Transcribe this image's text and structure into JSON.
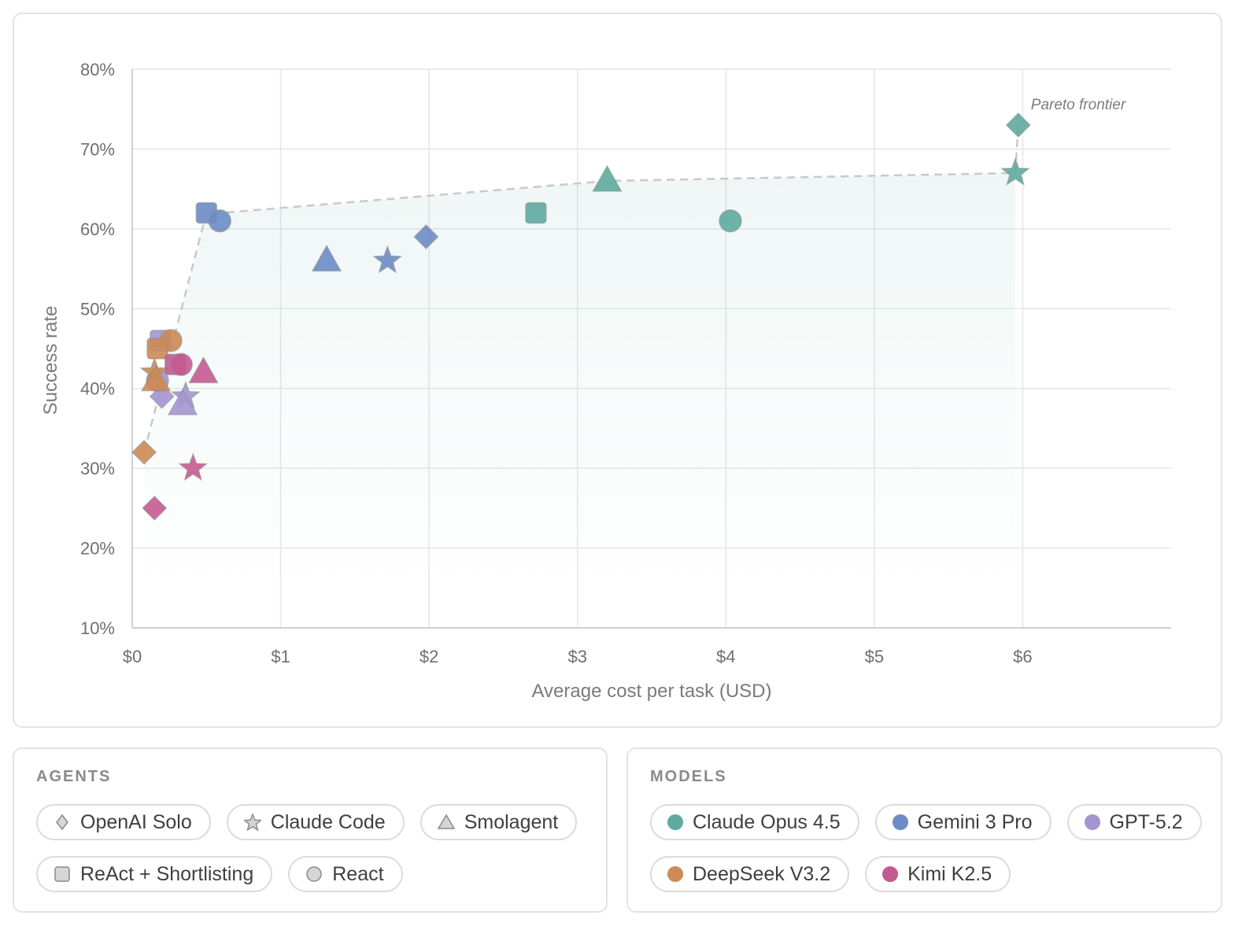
{
  "chart_data": {
    "type": "scatter",
    "xlabel": "Average cost per task (USD)",
    "ylabel": "Success rate",
    "xlim": [
      0,
      7
    ],
    "ylim": [
      10,
      80
    ],
    "x_ticks": [
      0,
      1,
      2,
      3,
      4,
      5,
      6
    ],
    "x_tick_labels": [
      "$0",
      "$1",
      "$2",
      "$3",
      "$4",
      "$5",
      "$6"
    ],
    "y_ticks": [
      10,
      20,
      30,
      40,
      50,
      60,
      70,
      80
    ],
    "y_tick_labels": [
      "10%",
      "20%",
      "30%",
      "40%",
      "50%",
      "60%",
      "70%",
      "80%"
    ],
    "grid": true,
    "frontier_label": "Pareto frontier",
    "frontier": [
      [
        0.08,
        32
      ],
      [
        0.5,
        62
      ],
      [
        0.6,
        62
      ],
      [
        3.2,
        66
      ],
      [
        5.95,
        67
      ],
      [
        5.97,
        73
      ]
    ],
    "model_colors": {
      "Claude Opus 4.5": "#5eaaa0",
      "Gemini 3 Pro": "#6b8cc4",
      "GPT-5.2": "#a495d0",
      "DeepSeek V3.2": "#cc8a55",
      "Kimi K2.5": "#c45a92"
    },
    "points": [
      {
        "agent": "OpenAI Solo",
        "model": "Claude Opus 4.5",
        "x": 5.97,
        "y": 73
      },
      {
        "agent": "Claude Code",
        "model": "Claude Opus 4.5",
        "x": 5.95,
        "y": 67
      },
      {
        "agent": "Smolagent",
        "model": "Claude Opus 4.5",
        "x": 3.2,
        "y": 66
      },
      {
        "agent": "ReAct + Shortlisting",
        "model": "Claude Opus 4.5",
        "x": 2.72,
        "y": 62
      },
      {
        "agent": "React",
        "model": "Claude Opus 4.5",
        "x": 4.03,
        "y": 61
      },
      {
        "agent": "ReAct + Shortlisting",
        "model": "Gemini 3 Pro",
        "x": 0.5,
        "y": 62
      },
      {
        "agent": "React",
        "model": "Gemini 3 Pro",
        "x": 0.59,
        "y": 61
      },
      {
        "agent": "OpenAI Solo",
        "model": "Gemini 3 Pro",
        "x": 1.98,
        "y": 59
      },
      {
        "agent": "Smolagent",
        "model": "Gemini 3 Pro",
        "x": 1.31,
        "y": 56
      },
      {
        "agent": "Claude Code",
        "model": "Gemini 3 Pro",
        "x": 1.72,
        "y": 56
      },
      {
        "agent": "ReAct + Shortlisting",
        "model": "GPT-5.2",
        "x": 0.19,
        "y": 46
      },
      {
        "agent": "React",
        "model": "GPT-5.2",
        "x": 0.17,
        "y": 41
      },
      {
        "agent": "OpenAI Solo",
        "model": "GPT-5.2",
        "x": 0.2,
        "y": 39
      },
      {
        "agent": "Claude Code",
        "model": "GPT-5.2",
        "x": 0.36,
        "y": 39
      },
      {
        "agent": "Smolagent",
        "model": "GPT-5.2",
        "x": 0.34,
        "y": 38
      },
      {
        "agent": "OpenAI Solo",
        "model": "DeepSeek V3.2",
        "x": 0.08,
        "y": 32
      },
      {
        "agent": "Claude Code",
        "model": "DeepSeek V3.2",
        "x": 0.15,
        "y": 42
      },
      {
        "agent": "Smolagent",
        "model": "DeepSeek V3.2",
        "x": 0.16,
        "y": 41
      },
      {
        "agent": "React",
        "model": "DeepSeek V3.2",
        "x": 0.26,
        "y": 46
      },
      {
        "agent": "ReAct + Shortlisting",
        "model": "DeepSeek V3.2",
        "x": 0.17,
        "y": 45
      },
      {
        "agent": "ReAct + Shortlisting",
        "model": "Kimi K2.5",
        "x": 0.29,
        "y": 43
      },
      {
        "agent": "React",
        "model": "Kimi K2.5",
        "x": 0.33,
        "y": 43
      },
      {
        "agent": "Smolagent",
        "model": "Kimi K2.5",
        "x": 0.48,
        "y": 42
      },
      {
        "agent": "Claude Code",
        "model": "Kimi K2.5",
        "x": 0.41,
        "y": 30
      },
      {
        "agent": "OpenAI Solo",
        "model": "Kimi K2.5",
        "x": 0.15,
        "y": 25
      }
    ]
  },
  "legend": {
    "agents_title": "AGENTS",
    "agents": [
      {
        "label": "OpenAI Solo",
        "icon": "diamond-icon"
      },
      {
        "label": "Claude Code",
        "icon": "star-icon"
      },
      {
        "label": "Smolagent",
        "icon": "triangle-icon"
      },
      {
        "label": "ReAct + Shortlisting",
        "icon": "square-icon"
      },
      {
        "label": "React",
        "icon": "circle-icon"
      }
    ],
    "models_title": "MODELS",
    "models": [
      {
        "label": "Claude Opus 4.5",
        "color": "#5eaaa0"
      },
      {
        "label": "Gemini 3 Pro",
        "color": "#6b8cc4"
      },
      {
        "label": "GPT-5.2",
        "color": "#a495d0"
      },
      {
        "label": "DeepSeek V3.2",
        "color": "#cc8a55"
      },
      {
        "label": "Kimi K2.5",
        "color": "#c45a92"
      }
    ]
  }
}
